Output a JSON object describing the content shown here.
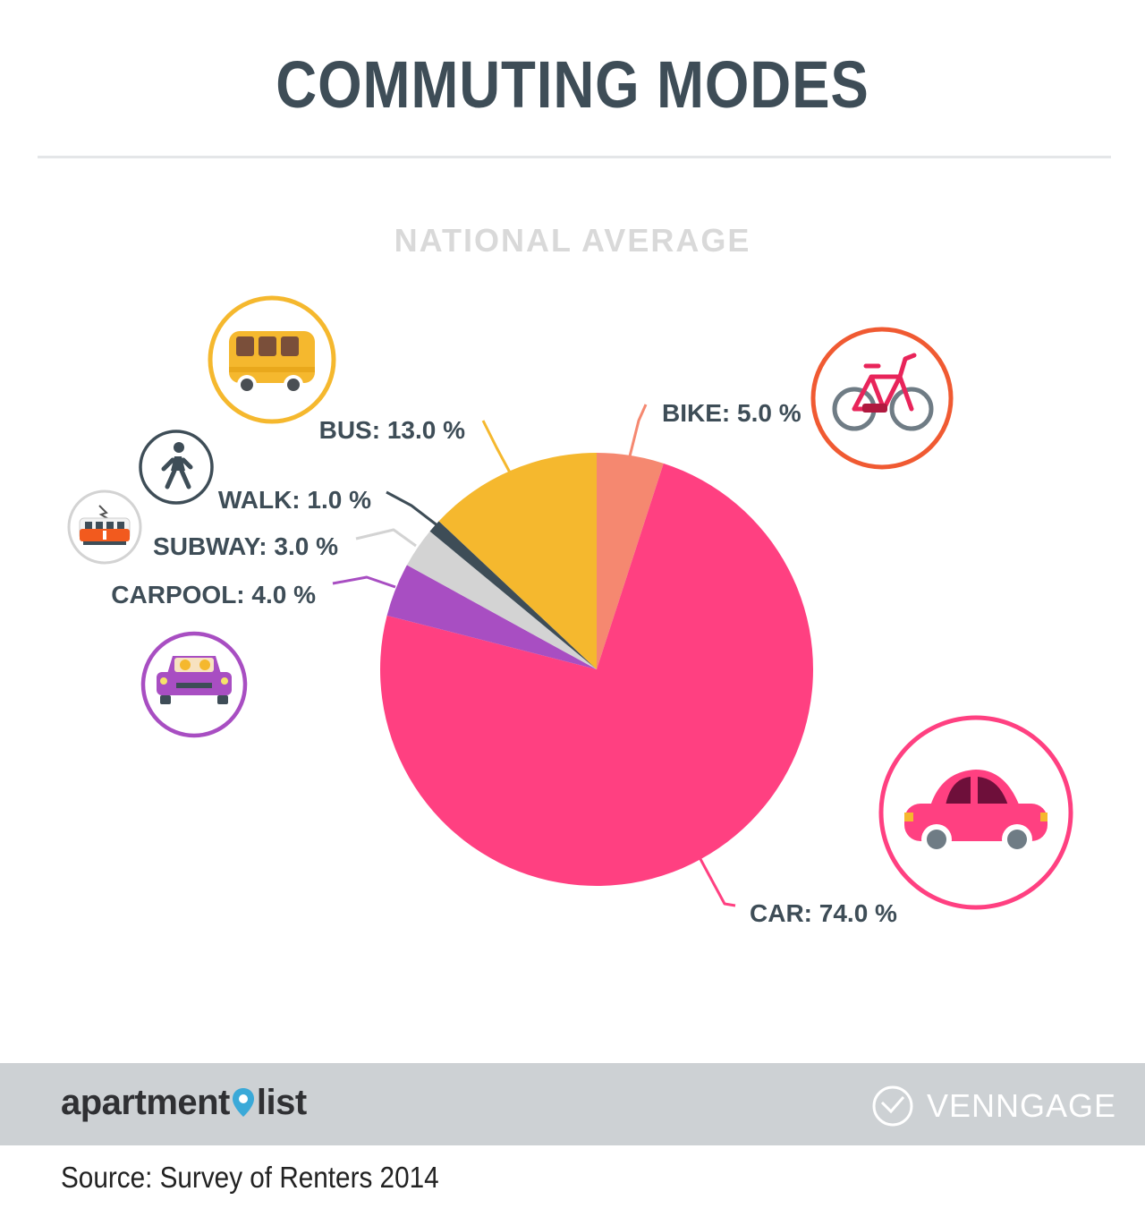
{
  "title": "COMMUTING MODES",
  "footer": {
    "brand_word1": "apartment",
    "brand_word2": "list",
    "venngage": "VENNGAGE",
    "source": "Source: Survey of Renters 2014"
  },
  "chart_data": {
    "type": "pie",
    "title": "NATIONAL AVERAGE",
    "slices": [
      {
        "label": "BIKE",
        "value": 5.0,
        "color": "#f58870",
        "text": "BIKE: 5.0 %",
        "icon": "bicycle-icon"
      },
      {
        "label": "CAR",
        "value": 74.0,
        "color": "#ff4081",
        "text": "CAR: 74.0 %",
        "icon": "car-icon"
      },
      {
        "label": "CARPOOL",
        "value": 4.0,
        "color": "#a84ec2",
        "text": "CARPOOL: 4.0 %",
        "icon": "carpool-icon"
      },
      {
        "label": "SUBWAY",
        "value": 3.0,
        "color": "#d3d3d3",
        "text": "SUBWAY: 3.0 %",
        "icon": "subway-tram-icon"
      },
      {
        "label": "WALK",
        "value": 1.0,
        "color": "#3e4d57",
        "text": "WALK: 1.0 %",
        "icon": "walking-person-icon"
      },
      {
        "label": "BUS",
        "value": 13.0,
        "color": "#f5b82e",
        "text": "BUS: 13.0 %",
        "icon": "bus-icon"
      }
    ]
  }
}
